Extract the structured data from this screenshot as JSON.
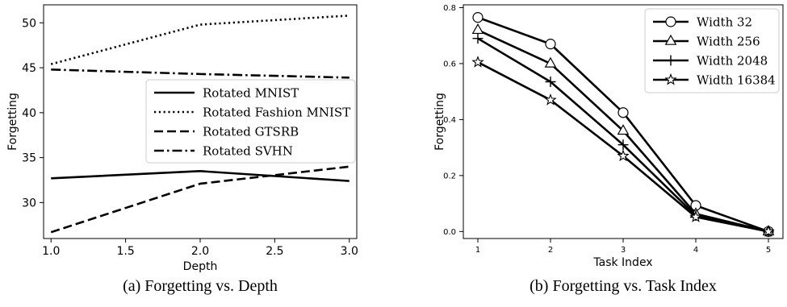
{
  "chart_data": [
    {
      "type": "line",
      "caption": "(a) Forgetting vs. Depth",
      "xlabel": "Depth",
      "ylabel": "Forgetting",
      "xlim": [
        0.95,
        3.05
      ],
      "ylim": [
        26.0,
        52.0
      ],
      "xticks": [
        1.0,
        1.5,
        2.0,
        2.5,
        3.0
      ],
      "xtick_labels": [
        "1.0",
        "1.5",
        "2.0",
        "2.5",
        "3.0"
      ],
      "yticks": [
        30,
        35,
        40,
        45,
        50
      ],
      "ytick_labels": [
        "30",
        "35",
        "40",
        "45",
        "50"
      ],
      "legend": "center-right",
      "x": [
        1.0,
        2.0,
        3.0
      ],
      "series": [
        {
          "name": "Rotated MNIST",
          "style": "solid",
          "values": [
            32.7,
            33.5,
            32.4
          ]
        },
        {
          "name": "Rotated Fashion MNIST",
          "style": "dotted",
          "values": [
            45.4,
            49.8,
            50.8
          ]
        },
        {
          "name": "Rotated GTSRB",
          "style": "dashed",
          "values": [
            26.7,
            32.1,
            34.0
          ]
        },
        {
          "name": "Rotated SVHN",
          "style": "dashdot",
          "values": [
            44.8,
            44.3,
            43.9
          ]
        }
      ]
    },
    {
      "type": "line",
      "caption": "(b) Forgetting vs. Task Index",
      "xlabel": "Task Index",
      "ylabel": "Forgetting",
      "xlim": [
        0.8,
        5.2
      ],
      "ylim": [
        -0.025,
        0.81
      ],
      "xticks": [
        1,
        2,
        3,
        4,
        5
      ],
      "xtick_labels": [
        "1",
        "2",
        "3",
        "4",
        "5"
      ],
      "yticks": [
        0.0,
        0.2,
        0.4,
        0.6,
        0.8
      ],
      "ytick_labels": [
        "0.0",
        "0.2",
        "0.4",
        "0.6",
        "0.8"
      ],
      "legend": "top-right",
      "x": [
        1,
        2,
        3,
        4,
        5
      ],
      "series": [
        {
          "name": "Width 32",
          "marker": "circle",
          "values": [
            0.765,
            0.67,
            0.425,
            0.093,
            0.0
          ]
        },
        {
          "name": "Width 256",
          "marker": "triangle",
          "values": [
            0.72,
            0.6,
            0.36,
            0.063,
            0.0
          ]
        },
        {
          "name": "Width 2048",
          "marker": "plus",
          "values": [
            0.69,
            0.535,
            0.31,
            0.057,
            0.0
          ]
        },
        {
          "name": "Width 16384",
          "marker": "star",
          "values": [
            0.605,
            0.47,
            0.27,
            0.052,
            0.0
          ]
        }
      ]
    }
  ]
}
